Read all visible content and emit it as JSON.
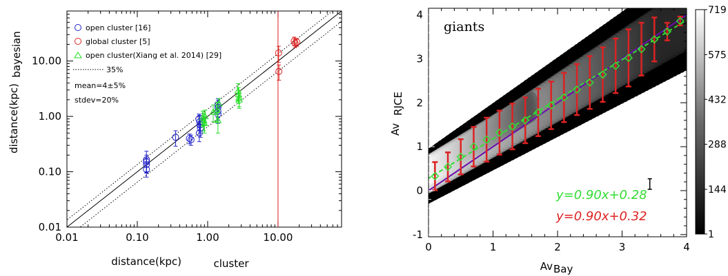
{
  "chart_data": [
    {
      "type": "scatter",
      "title": "",
      "xlabel": "distance(kpc)",
      "xlabel_sub": "cluster",
      "ylabel": "distance(kpc)",
      "ylabel_sub": "bayesian",
      "xscale": "log",
      "yscale": "log",
      "xlim": [
        0.01,
        80
      ],
      "ylim": [
        0.01,
        80
      ],
      "x_ticks": [
        "0.01",
        "0.10",
        "1.00",
        "10.00"
      ],
      "y_ticks": [
        "0.01",
        "0.10",
        "1.00",
        "10.00"
      ],
      "legend_position": "top-left",
      "legend": [
        {
          "label": "open cluster [16]",
          "marker": "circle",
          "color": "#2222cc"
        },
        {
          "label": "global cluster [5]",
          "marker": "circle",
          "color": "#dd2222"
        },
        {
          "label": "open cluster(Xiang et al. 2014) [29]",
          "marker": "triangle",
          "color": "#22dd22"
        },
        {
          "label": "35%",
          "marker": "dotted-line",
          "color": "#000000"
        }
      ],
      "stats": [
        "mean=4±5%",
        "stdev=20%"
      ],
      "lines": [
        {
          "name": "one-to-one",
          "style": "solid",
          "factor": 1.0
        },
        {
          "name": "35%",
          "style": "dotted",
          "factor": 1.35
        },
        {
          "name": "35%",
          "style": "dotted",
          "factor": 0.65
        }
      ],
      "series": [
        {
          "name": "open cluster [16]",
          "marker": "circle",
          "color": "#2222cc",
          "points": [
            {
              "x": 0.135,
              "y": 0.165,
              "err": 0.07
            },
            {
              "x": 0.135,
              "y": 0.15,
              "err": 0.05
            },
            {
              "x": 0.135,
              "y": 0.135,
              "err": 0.04
            },
            {
              "x": 0.135,
              "y": 0.11,
              "err": 0.03
            },
            {
              "x": 0.35,
              "y": 0.42,
              "err": 0.13
            },
            {
              "x": 0.55,
              "y": 0.4,
              "err": 0.08
            },
            {
              "x": 0.58,
              "y": 0.38,
              "err": 0.08
            },
            {
              "x": 0.75,
              "y": 0.9,
              "err": 0.2
            },
            {
              "x": 0.77,
              "y": 0.8,
              "err": 0.25
            },
            {
              "x": 0.78,
              "y": 0.7,
              "err": 0.2
            },
            {
              "x": 0.79,
              "y": 0.62,
              "err": 0.2
            },
            {
              "x": 0.76,
              "y": 0.5,
              "err": 0.15
            },
            {
              "x": 1.4,
              "y": 1.6,
              "err": 0.5
            },
            {
              "x": 1.4,
              "y": 1.45,
              "err": 0.5
            },
            {
              "x": 1.4,
              "y": 1.25,
              "err": 0.4
            },
            {
              "x": 1.4,
              "y": 1.1,
              "err": 0.35
            }
          ]
        },
        {
          "name": "global cluster [5]",
          "marker": "circle",
          "color": "#dd2222",
          "points": [
            {
              "x": 10.2,
              "y": 14.0,
              "err": 4.5
            },
            {
              "x": 10.3,
              "y": 6.5,
              "err": 2.0
            },
            {
              "x": 17.0,
              "y": 23.0,
              "err": 4.0
            },
            {
              "x": 17.5,
              "y": 21.0,
              "err": 3.5
            },
            {
              "x": 18.5,
              "y": 22.0,
              "err": 3.5
            }
          ],
          "extra_vertical_line_x": 10.0
        },
        {
          "name": "open cluster(Xiang et al. 2014) [29]",
          "marker": "triangle",
          "color": "#22dd22",
          "points": [
            {
              "x": 0.85,
              "y": 0.95,
              "err": 0.3
            },
            {
              "x": 0.88,
              "y": 0.85,
              "err": 0.3
            },
            {
              "x": 0.9,
              "y": 0.75,
              "err": 0.25
            },
            {
              "x": 0.92,
              "y": 1.0,
              "err": 0.3
            },
            {
              "x": 1.2,
              "y": 1.2,
              "err": 0.4
            },
            {
              "x": 1.35,
              "y": 1.3,
              "err": 0.5
            },
            {
              "x": 1.4,
              "y": 0.85,
              "err": 0.35
            },
            {
              "x": 1.45,
              "y": 1.7,
              "err": 0.4
            },
            {
              "x": 2.7,
              "y": 2.9,
              "err": 1.0
            },
            {
              "x": 2.75,
              "y": 2.5,
              "err": 0.8
            },
            {
              "x": 2.8,
              "y": 2.2,
              "err": 0.7
            },
            {
              "x": 2.8,
              "y": 2.0,
              "err": 0.6
            }
          ]
        }
      ]
    },
    {
      "type": "heatmap",
      "title": "",
      "label": "giants",
      "xlabel": "Av",
      "xlabel_sub": "Bay",
      "ylabel": "Av",
      "ylabel_sub": "RJCE",
      "xlim": [
        0,
        4
      ],
      "ylim": [
        -1.05,
        4.15
      ],
      "x_ticks": [
        "0",
        "1",
        "2",
        "3",
        "4"
      ],
      "y_ticks": [
        "-1",
        "0",
        "1",
        "2",
        "3",
        "4"
      ],
      "colorbar": {
        "ticks": [
          "719",
          "575",
          "432",
          "288",
          "144",
          "1"
        ],
        "min": 1,
        "max": 719,
        "colormap": "gray-reversed"
      },
      "fits": [
        {
          "text": "y=0.90x+0.28",
          "slope": 0.9,
          "intercept": 0.28,
          "color": "#33dd33",
          "style": "dashed"
        },
        {
          "text": "y=0.90x+0.32",
          "slope": 0.9,
          "intercept": 0.32,
          "color": "#dd2222",
          "style": "errorbars"
        }
      ],
      "reference_line": {
        "slope": 1.0,
        "intercept": 0.0,
        "color": "#6a0dad"
      },
      "binned_points": {
        "x": [
          0.1,
          0.3,
          0.5,
          0.7,
          0.9,
          1.1,
          1.3,
          1.5,
          1.7,
          1.9,
          2.1,
          2.3,
          2.5,
          2.7,
          2.9,
          3.1,
          3.3,
          3.5,
          3.7,
          3.9
        ],
        "y": [
          0.33,
          0.54,
          0.77,
          1.0,
          1.16,
          1.32,
          1.46,
          1.6,
          1.78,
          1.94,
          2.12,
          2.3,
          2.46,
          2.64,
          2.84,
          3.02,
          3.22,
          3.44,
          3.62,
          3.86
        ],
        "err": [
          0.32,
          0.33,
          0.4,
          0.45,
          0.5,
          0.5,
          0.52,
          0.52,
          0.54,
          0.54,
          0.56,
          0.58,
          0.6,
          0.62,
          0.62,
          0.65,
          0.6,
          0.5,
          0.2,
          0.1
        ],
        "marker": "diamond",
        "marker_color": "#33dd33",
        "errorbar_color": "#dd2222"
      },
      "typical_error_x": 3.43,
      "typical_error_y": 0.15,
      "typical_error_size": 0.24
    }
  ]
}
